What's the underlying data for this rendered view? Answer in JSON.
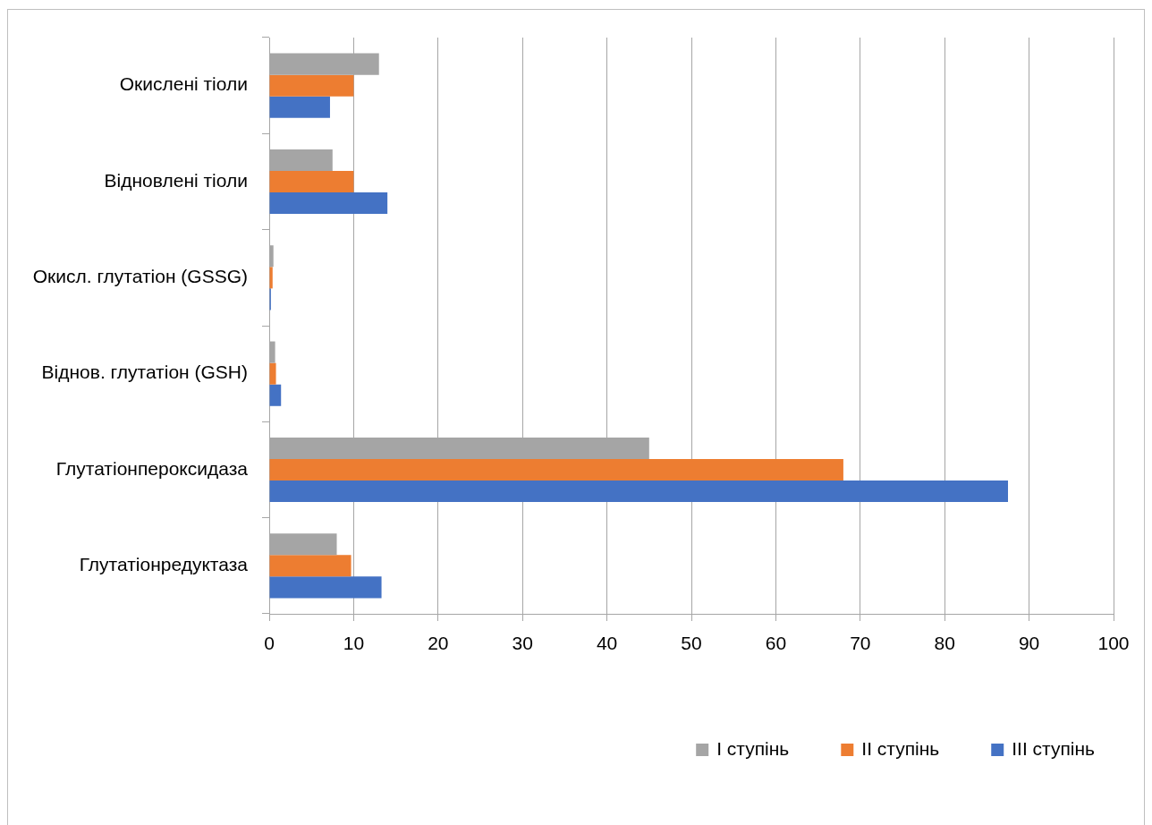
{
  "chart_data": {
    "type": "bar",
    "orientation": "horizontal",
    "categories": [
      "Окислені тіоли",
      "Відновлені тіоли",
      "Окисл. глутатіон (GSSG)",
      "Віднов. глутатіон (GSH)",
      "Глутатіонпероксидаза",
      "Глутатіонредуктаза"
    ],
    "series": [
      {
        "name": "I ступінь",
        "color": "#a5a5a5",
        "values": [
          13,
          7.5,
          0.5,
          0.7,
          45,
          8
        ]
      },
      {
        "name": "II ступінь",
        "color": "#ed7d31",
        "values": [
          10,
          10,
          0.4,
          0.8,
          68,
          9.7
        ]
      },
      {
        "name": "III ступінь",
        "color": "#4472c4",
        "values": [
          7.2,
          14,
          0.2,
          1.4,
          87.5,
          13.3
        ]
      }
    ],
    "xlim": [
      0,
      100
    ],
    "xticks": [
      0,
      10,
      20,
      30,
      40,
      50,
      60,
      70,
      80,
      90,
      100
    ],
    "grid": "x",
    "legend": "bottom right"
  }
}
